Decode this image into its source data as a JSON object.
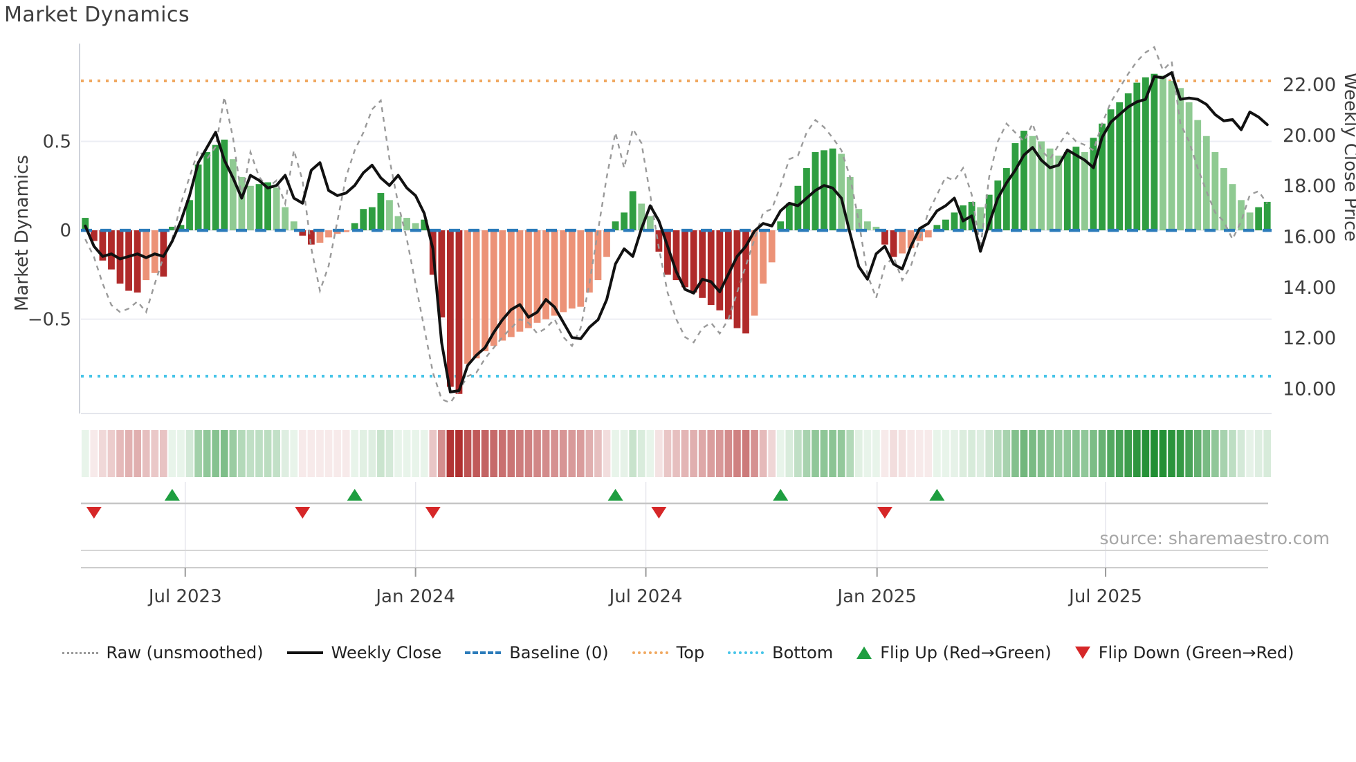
{
  "title": "Market Dynamics",
  "source": "source: sharemaestro.com",
  "chart_data": {
    "type": "combo",
    "title": "Market Dynamics",
    "subtitle": "",
    "left_axis": {
      "label": "Market Dynamics",
      "ticks": [
        {
          "label": "0.5",
          "value": 0.5
        },
        {
          "label": "0",
          "value": 0
        },
        {
          "label": "−0.5",
          "value": -0.5
        }
      ],
      "range": [
        -1.03,
        1.05
      ],
      "grid": true
    },
    "right_axis": {
      "label": "Weekly Close Price",
      "ticks": [
        {
          "label": "22.00",
          "value": 22
        },
        {
          "label": "20.00",
          "value": 20
        },
        {
          "label": "18.00",
          "value": 18
        },
        {
          "label": "16.00",
          "value": 16
        },
        {
          "label": "14.00",
          "value": 14
        },
        {
          "label": "12.00",
          "value": 12
        },
        {
          "label": "10.00",
          "value": 10
        }
      ],
      "range": [
        9.0,
        23.6
      ],
      "grid": false
    },
    "x_axis": {
      "ticks": [
        {
          "label": "Jul 2023",
          "index": 11.5
        },
        {
          "label": "Jan 2024",
          "index": 38.0
        },
        {
          "label": "Jul 2024",
          "index": 64.5
        },
        {
          "label": "Jan 2025",
          "index": 91.1
        },
        {
          "label": "Jul 2025",
          "index": 117.4
        }
      ]
    },
    "thresholds": {
      "baseline": 0,
      "top": 0.84,
      "bottom": -0.82
    },
    "series": {
      "oscillator_bars": [
        0.07,
        -0.06,
        -0.17,
        -0.22,
        -0.3,
        -0.34,
        -0.35,
        -0.28,
        -0.24,
        -0.26,
        0.02,
        0.03,
        0.17,
        0.37,
        0.44,
        0.48,
        0.51,
        0.4,
        0.3,
        0.25,
        0.26,
        0.27,
        0.24,
        0.13,
        0.05,
        -0.03,
        -0.08,
        -0.07,
        -0.04,
        -0.02,
        -0.01,
        0.04,
        0.12,
        0.13,
        0.21,
        0.17,
        0.08,
        0.07,
        0.04,
        0.06,
        -0.25,
        -0.49,
        -0.88,
        -0.92,
        -0.75,
        -0.72,
        -0.68,
        -0.65,
        -0.62,
        -0.6,
        -0.57,
        -0.55,
        -0.52,
        -0.5,
        -0.48,
        -0.46,
        -0.44,
        -0.43,
        -0.35,
        -0.28,
        -0.15,
        0.05,
        0.1,
        0.22,
        0.15,
        0.08,
        -0.12,
        -0.25,
        -0.28,
        -0.32,
        -0.35,
        -0.38,
        -0.42,
        -0.45,
        -0.5,
        -0.55,
        -0.58,
        -0.48,
        -0.3,
        -0.18,
        0.05,
        0.15,
        0.25,
        0.35,
        0.44,
        0.45,
        0.46,
        0.43,
        0.3,
        0.12,
        0.05,
        0.02,
        -0.08,
        -0.15,
        -0.13,
        -0.1,
        -0.06,
        -0.04,
        0.03,
        0.06,
        0.1,
        0.14,
        0.16,
        0.13,
        0.2,
        0.28,
        0.35,
        0.49,
        0.56,
        0.53,
        0.5,
        0.46,
        0.42,
        0.44,
        0.47,
        0.44,
        0.52,
        0.6,
        0.68,
        0.72,
        0.77,
        0.83,
        0.86,
        0.88,
        0.87,
        0.84,
        0.8,
        0.72,
        0.62,
        0.53,
        0.44,
        0.35,
        0.26,
        0.17,
        0.1,
        0.13,
        0.16
      ],
      "weekly_close": [
        16.4,
        15.6,
        15.2,
        15.3,
        15.1,
        15.2,
        15.3,
        15.15,
        15.3,
        15.2,
        15.8,
        16.6,
        17.6,
        18.9,
        19.5,
        20.1,
        19.0,
        18.3,
        17.5,
        18.4,
        18.2,
        17.9,
        18.0,
        18.4,
        17.5,
        17.3,
        18.6,
        18.9,
        17.8,
        17.6,
        17.7,
        18.0,
        18.5,
        18.8,
        18.3,
        18.0,
        18.4,
        17.9,
        17.6,
        16.9,
        15.5,
        11.8,
        9.85,
        9.9,
        10.9,
        11.3,
        11.6,
        12.2,
        12.7,
        13.1,
        13.3,
        12.8,
        13.0,
        13.5,
        13.2,
        12.6,
        12.0,
        11.95,
        12.4,
        12.7,
        13.5,
        14.9,
        15.5,
        15.2,
        16.3,
        17.2,
        16.6,
        15.6,
        14.6,
        13.9,
        13.75,
        14.3,
        14.2,
        13.8,
        14.5,
        15.2,
        15.6,
        16.2,
        16.5,
        16.4,
        17.0,
        17.3,
        17.2,
        17.5,
        17.8,
        18.0,
        17.9,
        17.5,
        16.1,
        14.8,
        14.3,
        15.3,
        15.6,
        14.9,
        14.7,
        15.6,
        16.3,
        16.5,
        17.0,
        17.2,
        17.5,
        16.6,
        16.8,
        15.4,
        16.5,
        17.5,
        18.1,
        18.6,
        19.2,
        19.5,
        19.0,
        18.7,
        18.8,
        19.4,
        19.2,
        19.0,
        18.7,
        19.9,
        20.5,
        20.8,
        21.1,
        21.3,
        21.4,
        22.3,
        22.25,
        22.45,
        21.4,
        21.45,
        21.4,
        21.2,
        20.8,
        20.55,
        20.6,
        20.2,
        20.9,
        20.7,
        20.4
      ],
      "raw_unsmoothed": [
        -0.05,
        -0.15,
        -0.3,
        -0.42,
        -0.46,
        -0.44,
        -0.4,
        -0.46,
        -0.3,
        -0.15,
        -0.05,
        0.15,
        0.3,
        0.45,
        0.4,
        0.47,
        0.75,
        0.52,
        0.18,
        0.44,
        0.3,
        0.24,
        0.28,
        0.15,
        0.45,
        0.28,
        -0.1,
        -0.34,
        -0.2,
        0.05,
        0.3,
        0.45,
        0.55,
        0.68,
        0.73,
        0.4,
        0.15,
        -0.05,
        -0.3,
        -0.55,
        -0.8,
        -0.95,
        -0.97,
        -0.9,
        -0.82,
        -0.8,
        -0.72,
        -0.66,
        -0.6,
        -0.55,
        -0.5,
        -0.52,
        -0.58,
        -0.55,
        -0.5,
        -0.6,
        -0.65,
        -0.55,
        -0.3,
        0.0,
        0.3,
        0.55,
        0.35,
        0.57,
        0.49,
        0.2,
        -0.1,
        -0.35,
        -0.5,
        -0.6,
        -0.63,
        -0.55,
        -0.52,
        -0.58,
        -0.5,
        -0.35,
        -0.2,
        -0.05,
        0.1,
        0.12,
        0.25,
        0.4,
        0.42,
        0.55,
        0.62,
        0.58,
        0.52,
        0.45,
        0.3,
        0.05,
        -0.25,
        -0.38,
        -0.2,
        -0.15,
        -0.28,
        -0.2,
        -0.05,
        0.1,
        0.2,
        0.3,
        0.28,
        0.35,
        0.2,
        -0.1,
        0.3,
        0.5,
        0.6,
        0.55,
        0.5,
        0.6,
        0.45,
        0.4,
        0.48,
        0.55,
        0.5,
        0.48,
        0.45,
        0.6,
        0.72,
        0.8,
        0.88,
        0.95,
        1.0,
        1.03,
        0.9,
        0.95,
        0.6,
        0.5,
        0.35,
        0.22,
        0.1,
        0.05,
        -0.05,
        0.05,
        0.2,
        0.22,
        0.15
      ]
    },
    "flip_up_indices": [
      10,
      31,
      61,
      80,
      98
    ],
    "flip_down_indices": [
      1,
      25,
      40,
      66,
      92
    ],
    "colors": {
      "bar_green_dark": "#2f9e41",
      "bar_green_light": "#8fca92",
      "bar_red_dark": "#b02a2a",
      "bar_red_light": "#ec9277",
      "weekly_close_line": "#111111",
      "raw_line": "#9a9a9a",
      "baseline": "#2b7bba",
      "top_line": "#f0a860",
      "bottom_line": "#45c4e8",
      "flip_up": "#1e9e40",
      "flip_down": "#d62728",
      "heat_green": "#1c8c2e",
      "heat_red": "#b03030"
    },
    "legend": [
      {
        "label": "Raw (unsmoothed)",
        "swatch": "raw",
        "icon": "dotted-line-icon"
      },
      {
        "label": "Weekly Close",
        "swatch": "close",
        "icon": "solid-line-icon"
      },
      {
        "label": "Baseline (0)",
        "swatch": "baseline",
        "icon": "dashed-line-icon"
      },
      {
        "label": "Top",
        "swatch": "top",
        "icon": "dotted-line-icon"
      },
      {
        "label": "Bottom",
        "swatch": "bottom",
        "icon": "dotted-line-icon"
      },
      {
        "label": "Flip Up (Red→Green)",
        "swatch": "tri-up",
        "icon": "triangle-up-icon"
      },
      {
        "label": "Flip Down (Green→Red)",
        "swatch": "tri-down",
        "icon": "triangle-down-icon"
      }
    ],
    "legend_position": "bottom-center"
  }
}
